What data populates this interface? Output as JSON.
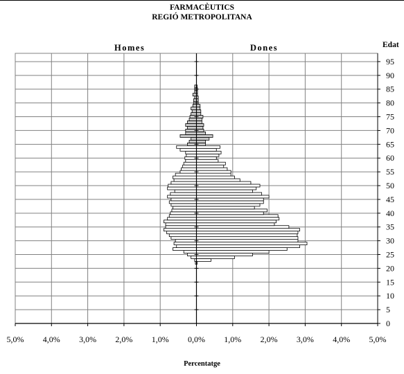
{
  "chart_data": {
    "type": "bar",
    "orientation": "population-pyramid",
    "title": "FARMACÈUTICS",
    "subtitle": "REGIÓ METROPOLITANA",
    "xlabel": "Percentatge",
    "ylabel": "Edat",
    "left_group": "Homes",
    "right_group": "Dones",
    "x_ticks": [
      "5,0%",
      "4,0%",
      "3,0%",
      "2,0%",
      "1,0%",
      "0,0%",
      "1,0%",
      "2,0%",
      "3,0%",
      "4,0%",
      "5,0%"
    ],
    "y_ticks": [
      "0",
      "5",
      "10",
      "15",
      "20",
      "25",
      "30",
      "35",
      "40",
      "45",
      "50",
      "55",
      "60",
      "65",
      "70",
      "75",
      "80",
      "85",
      "90",
      "95"
    ],
    "xlim": [
      -5,
      5
    ],
    "ylim": [
      0,
      98
    ],
    "grid": true,
    "series": [
      {
        "name": "Homes",
        "ages": [
          22,
          23,
          24,
          25,
          26,
          27,
          28,
          29,
          30,
          31,
          32,
          33,
          34,
          35,
          36,
          37,
          38,
          39,
          40,
          41,
          42,
          43,
          44,
          45,
          46,
          47,
          48,
          49,
          50,
          51,
          52,
          53,
          54,
          55,
          56,
          57,
          58,
          59,
          60,
          61,
          62,
          63,
          64,
          65,
          66,
          67,
          68,
          69,
          70,
          71,
          72,
          73,
          74,
          75,
          76,
          77,
          78,
          79,
          80,
          81,
          82,
          83,
          84,
          85,
          86
        ],
        "values": [
          0.03,
          0.05,
          0.15,
          0.25,
          0.35,
          0.65,
          0.55,
          0.62,
          0.58,
          0.7,
          0.75,
          0.82,
          0.9,
          0.85,
          0.85,
          0.9,
          0.8,
          0.75,
          0.72,
          0.68,
          0.65,
          0.7,
          0.75,
          0.7,
          0.8,
          0.72,
          0.6,
          0.8,
          0.78,
          0.7,
          0.62,
          0.65,
          0.58,
          0.45,
          0.42,
          0.38,
          0.35,
          0.3,
          0.32,
          0.28,
          0.3,
          0.45,
          0.55,
          0.25,
          0.2,
          0.15,
          0.45,
          0.3,
          0.3,
          0.25,
          0.3,
          0.25,
          0.2,
          0.18,
          0.15,
          0.12,
          0.15,
          0.1,
          0.08,
          0.08,
          0.05,
          0.1,
          0.05,
          0.05,
          0.05
        ]
      },
      {
        "name": "Dones",
        "ages": [
          22,
          23,
          24,
          25,
          26,
          27,
          28,
          29,
          30,
          31,
          32,
          33,
          34,
          35,
          36,
          37,
          38,
          39,
          40,
          41,
          42,
          43,
          44,
          45,
          46,
          47,
          48,
          49,
          50,
          51,
          52,
          53,
          54,
          55,
          56,
          57,
          58,
          59,
          60,
          61,
          62,
          63,
          64,
          65,
          66,
          67,
          68,
          69,
          70,
          71,
          72,
          73,
          74,
          75,
          76,
          77,
          78,
          79,
          80,
          81,
          82,
          83,
          84,
          85,
          86
        ],
        "values": [
          0.02,
          0.4,
          1.05,
          1.55,
          2.0,
          2.5,
          2.85,
          3.05,
          2.8,
          2.8,
          2.78,
          2.8,
          2.85,
          2.55,
          2.15,
          2.2,
          2.28,
          2.25,
          1.85,
          1.95,
          1.6,
          1.75,
          1.85,
          1.85,
          2.0,
          1.8,
          1.55,
          1.65,
          1.75,
          1.5,
          1.2,
          1.05,
          0.95,
          0.95,
          0.85,
          0.75,
          0.8,
          0.6,
          0.55,
          0.62,
          0.68,
          0.55,
          0.65,
          0.25,
          0.25,
          0.35,
          0.45,
          0.25,
          0.2,
          0.18,
          0.2,
          0.15,
          0.15,
          0.18,
          0.12,
          0.12,
          0.1,
          0.1,
          0.05,
          0.05,
          0.05,
          0.03,
          0.03,
          0.03,
          0.02
        ]
      }
    ],
    "bar_colors": {
      "under_65": "#ffffff",
      "over_65": "#c8c8c8",
      "stroke": "#000000",
      "grid": "#808080"
    }
  }
}
